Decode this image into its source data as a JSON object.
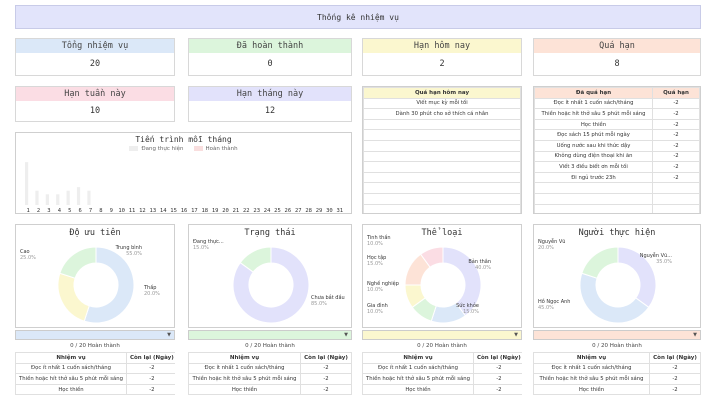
{
  "title": "Thống kê nhiệm vụ",
  "stats": [
    {
      "label": "Tổng nhiệm vụ",
      "value": "20",
      "color": "#dbe8f8"
    },
    {
      "label": "Đã hoàn thành",
      "value": "0",
      "color": "#dcf5dc"
    },
    {
      "label": "Hạn hôm nay",
      "value": "2",
      "color": "#fbf7cf"
    },
    {
      "label": "Quá hạn",
      "value": "8",
      "color": "#fde3d7"
    },
    {
      "label": "Hạn tuần này",
      "value": "10",
      "color": "#fbdde4"
    },
    {
      "label": "Hạn tháng này",
      "value": "12",
      "color": "#e2e2fb"
    }
  ],
  "today_table": {
    "header": "Quá hạn hôm nay",
    "header_color": "#fbf7cf",
    "rows": [
      "Viết mục kỳ mỗi tối",
      "Dành 30 phút cho sở thích cá nhân",
      "",
      "",
      "",
      "",
      "",
      "",
      "",
      "",
      ""
    ]
  },
  "overdue_table": {
    "col1": "Đã quá hạn",
    "col2": "Quá hạn",
    "header_color": "#fde3d7",
    "rows": [
      [
        "Đọc ít nhất 1 cuốn sách/tháng",
        "-2"
      ],
      [
        "Thiền hoặc hít thở sâu 5 phút mỗi sáng",
        "-2"
      ],
      [
        "Học thiền",
        "-2"
      ],
      [
        "Đọc sách 15 phút mỗi ngày",
        "-2"
      ],
      [
        "Uống nước sau khi thức dậy",
        "-2"
      ],
      [
        "Không dùng điện thoại khi ăn",
        "-2"
      ],
      [
        "Viết 3 điều biết ơn mỗi tối",
        "-2"
      ],
      [
        "Đi ngủ trước 23h",
        "-2"
      ],
      [
        "",
        ""
      ],
      [
        "",
        ""
      ],
      [
        "",
        ""
      ]
    ]
  },
  "chart_data": {
    "type": "bar",
    "title": "Tiến trình mỗi tháng",
    "categories": [
      "1",
      "2",
      "3",
      "4",
      "5",
      "6",
      "7",
      "8",
      "9",
      "10",
      "11",
      "12",
      "13",
      "14",
      "15",
      "16",
      "17",
      "18",
      "19",
      "20",
      "21",
      "22",
      "23",
      "24",
      "25",
      "26",
      "27",
      "28",
      "29",
      "30",
      "31"
    ],
    "series": [
      {
        "name": "Đang thực hiện",
        "color": "#eeeeee",
        "values": [
          12,
          4,
          3,
          3,
          4,
          5,
          4,
          0,
          0,
          0,
          0,
          0,
          0,
          0,
          0,
          0,
          0,
          0,
          0,
          0,
          0,
          0,
          0,
          0,
          0,
          0,
          0,
          0,
          0,
          0,
          0
        ]
      },
      {
        "name": "Hoàn thành",
        "color": "#f9dede",
        "values": [
          0,
          0,
          0,
          0,
          0,
          0,
          0,
          0,
          0,
          0,
          0,
          0,
          0,
          0,
          0,
          0,
          0,
          0,
          0,
          0,
          0,
          0,
          0,
          0,
          0,
          0,
          0,
          0,
          0,
          0,
          0
        ]
      }
    ],
    "ylim": [
      0,
      14
    ]
  },
  "donuts": [
    {
      "title": "Độ ưu tiên",
      "slices": [
        {
          "name": "Trung bình",
          "pct": "55.0%",
          "value": 55,
          "color": "#dbe8f8"
        },
        {
          "name": "Cao",
          "pct": "25.0%",
          "value": 25,
          "color": "#fbf7cf"
        },
        {
          "name": "Thấp",
          "pct": "20.0%",
          "value": 20,
          "color": "#dcf5dc"
        }
      ],
      "accent": "#dbe8f8",
      "progress": "0 / 20 Hoàn thành",
      "table": {
        "col1": "Nhiệm vụ",
        "col2": "Còn lại (Ngày)",
        "rows": [
          [
            "Đọc ít nhất 1 cuốn sách/tháng",
            "-2"
          ],
          [
            "Thiền hoặc hít thở sâu 5 phút mỗi sáng",
            "-2"
          ],
          [
            "Học thiền",
            "-2"
          ]
        ]
      }
    },
    {
      "title": "Trạng thái",
      "slices": [
        {
          "name": "Chưa bắt đầu",
          "pct": "85.0%",
          "value": 85,
          "color": "#e2e2fb"
        },
        {
          "name": "Đang thực...",
          "pct": "15.0%",
          "value": 15,
          "color": "#dcf5dc"
        }
      ],
      "accent": "#dcf5dc",
      "progress": "0 / 20 Hoàn thành",
      "table": {
        "col1": "Nhiệm vụ",
        "col2": "Còn lại (Ngày)",
        "rows": [
          [
            "Đọc ít nhất 1 cuốn sách/tháng",
            "-2"
          ],
          [
            "Thiền hoặc hít thở sâu 5 phút mỗi sáng",
            "-2"
          ],
          [
            "Học thiền",
            "-2"
          ]
        ]
      }
    },
    {
      "title": "Thể loại",
      "slices": [
        {
          "name": "Bản thân",
          "pct": "40.0%",
          "value": 40,
          "color": "#e2e2fb"
        },
        {
          "name": "Sức khỏe",
          "pct": "15.0%",
          "value": 15,
          "color": "#dbe8f8"
        },
        {
          "name": "Gia đình",
          "pct": "10.0%",
          "value": 10,
          "color": "#dcf5dc"
        },
        {
          "name": "Nghề nghiệp",
          "pct": "10.0%",
          "value": 10,
          "color": "#fbf7cf"
        },
        {
          "name": "Học tập",
          "pct": "15.0%",
          "value": 15,
          "color": "#fde3d7"
        },
        {
          "name": "Tinh thần",
          "pct": "10.0%",
          "value": 10,
          "color": "#fbdde4"
        }
      ],
      "accent": "#fbf7cf",
      "progress": "0 / 20 Hoàn thành",
      "table": {
        "col1": "Nhiệm vụ",
        "col2": "Còn lại (Ngày)",
        "rows": [
          [
            "Đọc ít nhất 1 cuốn sách/tháng",
            "-2"
          ],
          [
            "Thiền hoặc hít thở sâu 5 phút mỗi sáng",
            "-2"
          ],
          [
            "Học thiền",
            "-2"
          ]
        ]
      }
    },
    {
      "title": "Người thực hiện",
      "slices": [
        {
          "name": "Nguyễn Vũ...",
          "pct": "35.0%",
          "value": 35,
          "color": "#e2e2fb"
        },
        {
          "name": "Hồ Ngọc Anh",
          "pct": "45.0%",
          "value": 45,
          "color": "#dbe8f8"
        },
        {
          "name": "Nguyễn Vũ",
          "pct": "20.0%",
          "value": 20,
          "color": "#dcf5dc"
        }
      ],
      "accent": "#fde3d7",
      "progress": "0 / 20 Hoàn thành",
      "table": {
        "col1": "Nhiệm vụ",
        "col2": "Còn lại (Ngày)",
        "rows": [
          [
            "Đọc ít nhất 1 cuốn sách/tháng",
            "-2"
          ],
          [
            "Thiền hoặc hít thở sâu 5 phút mỗi sáng",
            "-2"
          ],
          [
            "Học thiền",
            "-2"
          ]
        ]
      }
    }
  ]
}
